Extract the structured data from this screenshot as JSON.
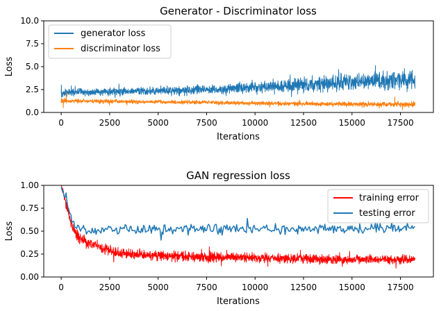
{
  "figure": {
    "colors": {
      "generator": "#1f77b4",
      "discriminator": "#ff7f0e",
      "training": "#ff0000",
      "testing": "#1f77b4",
      "legend_edge": "#cccccc"
    }
  },
  "chart_data": [
    {
      "type": "line",
      "title": "Generator - Discriminator loss",
      "xlabel": "Iterations",
      "ylabel": "Loss",
      "xlim": [
        -900,
        19200
      ],
      "ylim": [
        0,
        10
      ],
      "xticks": [
        0,
        2500,
        5000,
        7500,
        10000,
        12500,
        15000,
        17500
      ],
      "yticks": [
        0.0,
        2.5,
        5.0,
        7.5,
        10.0
      ],
      "ytick_labels": [
        "0.0",
        "2.5",
        "5.0",
        "7.5",
        "10.0"
      ],
      "legend": {
        "location": "upper-left",
        "entries": [
          "generator loss",
          "discriminator loss"
        ]
      },
      "series": [
        {
          "name": "generator loss",
          "color_key": "generator",
          "x": [
            0,
            1000,
            2500,
            5000,
            7500,
            10000,
            12500,
            15000,
            17500,
            18250
          ],
          "y": [
            2.1,
            2.2,
            2.25,
            2.35,
            2.5,
            2.75,
            3.0,
            3.3,
            3.5,
            3.5
          ],
          "band_half_width": [
            0.35,
            0.35,
            0.35,
            0.4,
            0.45,
            0.55,
            0.7,
            0.8,
            0.9,
            0.9
          ],
          "spikes": [
            [
              0,
              3.0
            ],
            [
              16200,
              5.1
            ],
            [
              17700,
              4.8
            ],
            [
              18100,
              4.6
            ],
            [
              14300,
              4.7
            ],
            [
              11800,
              4.1
            ]
          ],
          "noisy": true
        },
        {
          "name": "discriminator loss",
          "color_key": "discriminator",
          "x": [
            0,
            500,
            2500,
            5000,
            7500,
            10000,
            12500,
            15000,
            17500,
            18250
          ],
          "y": [
            1.3,
            1.25,
            1.2,
            1.15,
            1.1,
            1.0,
            0.95,
            0.9,
            0.9,
            0.9
          ],
          "band_half_width": [
            0.3,
            0.2,
            0.18,
            0.18,
            0.18,
            0.18,
            0.2,
            0.22,
            0.25,
            0.25
          ],
          "spikes": [
            [
              100,
              0.5
            ],
            [
              250,
              2.2
            ],
            [
              17200,
              1.7
            ],
            [
              16400,
              0.45
            ]
          ],
          "noisy": true
        }
      ]
    },
    {
      "type": "line",
      "title": "GAN regression loss",
      "xlabel": "Iterations",
      "ylabel": "Loss",
      "xlim": [
        -900,
        19200
      ],
      "ylim": [
        0,
        1
      ],
      "xticks": [
        0,
        2500,
        5000,
        7500,
        10000,
        12500,
        15000,
        17500
      ],
      "yticks": [
        0.0,
        0.25,
        0.5,
        0.75,
        1.0
      ],
      "ytick_labels": [
        "0.00",
        "0.25",
        "0.50",
        "0.75",
        "1.00"
      ],
      "legend": {
        "location": "upper-right",
        "entries": [
          "training error",
          "testing error"
        ]
      },
      "series": [
        {
          "name": "training error",
          "color_key": "training",
          "x": [
            0,
            250,
            500,
            750,
            1000,
            1500,
            2000,
            2500,
            3000,
            4000,
            5000,
            7500,
            10000,
            12500,
            15000,
            17500,
            18250
          ],
          "y": [
            1.0,
            0.8,
            0.6,
            0.47,
            0.42,
            0.36,
            0.32,
            0.29,
            0.26,
            0.245,
            0.235,
            0.22,
            0.21,
            0.2,
            0.19,
            0.19,
            0.19
          ],
          "band_half_width": [
            0.02,
            0.05,
            0.05,
            0.05,
            0.05,
            0.05,
            0.05,
            0.05,
            0.05,
            0.05,
            0.05,
            0.05,
            0.045,
            0.045,
            0.045,
            0.04,
            0.04
          ],
          "noisy": true
        },
        {
          "name": "testing error",
          "color_key": "testing",
          "x": [
            0,
            250,
            500,
            750,
            1000,
            1500,
            2000,
            2500,
            5000,
            7500,
            10000,
            12500,
            15000,
            17500,
            18250
          ],
          "y": [
            1.0,
            0.85,
            0.68,
            0.56,
            0.52,
            0.5,
            0.5,
            0.52,
            0.52,
            0.52,
            0.52,
            0.52,
            0.52,
            0.53,
            0.55
          ],
          "band_half_width": [
            0.02,
            0.05,
            0.05,
            0.05,
            0.05,
            0.05,
            0.05,
            0.05,
            0.05,
            0.05,
            0.05,
            0.05,
            0.05,
            0.06,
            0.05
          ],
          "points_every": 50,
          "noisy": true
        }
      ]
    }
  ]
}
